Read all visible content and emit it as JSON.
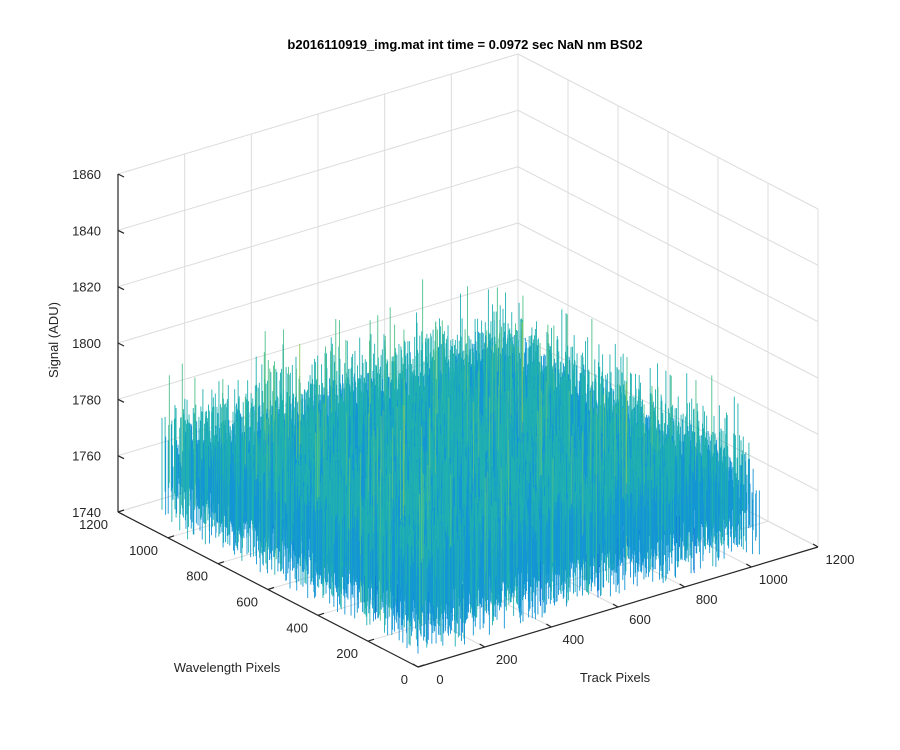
{
  "chart_data": {
    "type": "surface",
    "title": "b2016110919_img.mat int time = 0.0972 sec  NaN nm BS02",
    "xlabel": "Track Pixels",
    "ylabel": "Wavelength Pixels",
    "zlabel": "Signal (ADU)",
    "xlim": [
      0,
      1200
    ],
    "ylim": [
      0,
      1200
    ],
    "zlim": [
      1740,
      1860
    ],
    "xticks": [
      "0",
      "200",
      "400",
      "600",
      "800",
      "1000",
      "1200"
    ],
    "yticks": [
      "0",
      "200",
      "400",
      "600",
      "800",
      "1000",
      "1200"
    ],
    "zticks": [
      "1740",
      "1760",
      "1780",
      "1800",
      "1820",
      "1840",
      "1860"
    ],
    "grid": true,
    "colormap": [
      "#0f6fd9",
      "#1496d4",
      "#20b0b0",
      "#4fc08a",
      "#8ec857"
    ],
    "surface_summary": {
      "data_extent_x": [
        0,
        1024
      ],
      "data_extent_y": [
        0,
        1024
      ],
      "mean_signal": 1775,
      "noise_band": [
        1745,
        1830
      ]
    }
  }
}
